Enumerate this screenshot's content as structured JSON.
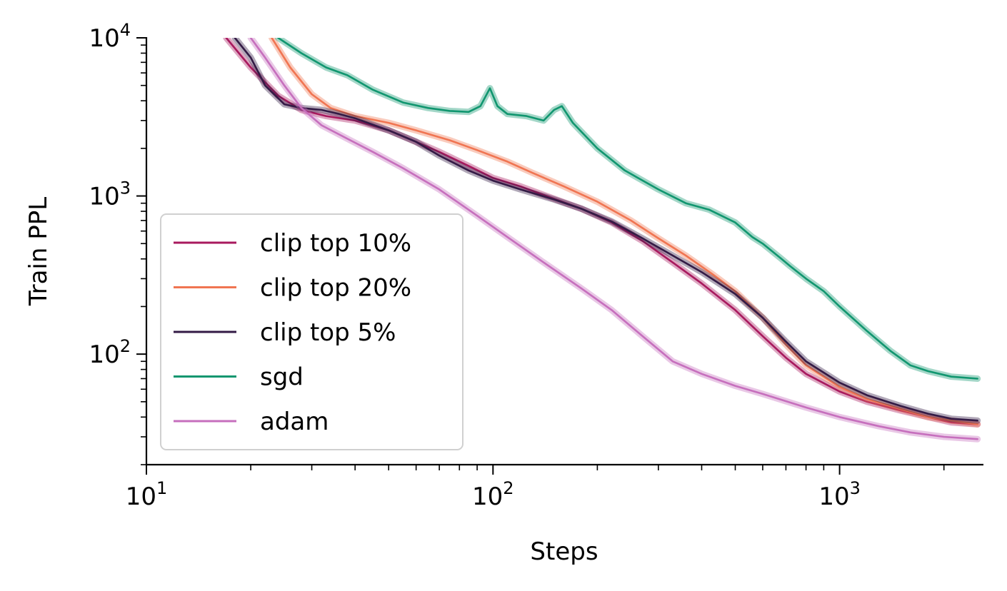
{
  "chart_data": {
    "type": "line",
    "title": "",
    "xlabel": "Steps",
    "ylabel": "Train PPL",
    "xscale": "log",
    "yscale": "log",
    "xlim": [
      10,
      2600
    ],
    "ylim": [
      20,
      10000
    ],
    "grid": false,
    "legend_position": "lower-left",
    "x_ticks": [
      {
        "value": 10,
        "base": "10",
        "exp": "1"
      },
      {
        "value": 100,
        "base": "10",
        "exp": "2"
      },
      {
        "value": 1000,
        "base": "10",
        "exp": "3"
      }
    ],
    "y_ticks": [
      {
        "value": 100,
        "base": "10",
        "exp": "2"
      },
      {
        "value": 1000,
        "base": "10",
        "exp": "3"
      },
      {
        "value": 10000,
        "base": "10",
        "exp": "4"
      }
    ],
    "series": [
      {
        "name": "clip top 10%",
        "color": "#a8195e",
        "x": [
          17,
          20,
          24,
          28,
          33,
          40,
          50,
          60,
          70,
          85,
          100,
          120,
          150,
          180,
          220,
          270,
          330,
          400,
          500,
          600,
          700,
          800,
          1000,
          1200,
          1500,
          1800,
          2100,
          2500
        ],
        "y": [
          10000,
          6500,
          4300,
          3500,
          3200,
          3000,
          2600,
          2200,
          1900,
          1550,
          1300,
          1150,
          960,
          830,
          680,
          520,
          380,
          280,
          190,
          130,
          95,
          75,
          58,
          50,
          44,
          40,
          37,
          36
        ]
      },
      {
        "name": "clip top 20%",
        "color": "#f07552",
        "x": [
          23,
          26,
          30,
          34,
          40,
          50,
          60,
          75,
          90,
          110,
          130,
          160,
          200,
          250,
          300,
          360,
          430,
          500,
          600,
          700,
          800,
          1000,
          1200,
          1500,
          1800,
          2100,
          2500
        ],
        "y": [
          10000,
          6500,
          4400,
          3600,
          3200,
          2900,
          2600,
          2250,
          1950,
          1650,
          1400,
          1150,
          920,
          700,
          540,
          420,
          320,
          250,
          170,
          115,
          85,
          62,
          52,
          45,
          40,
          38,
          36
        ]
      },
      {
        "name": "clip top 5%",
        "color": "#331a45",
        "x": [
          18,
          20,
          22,
          25,
          28,
          32,
          36,
          40,
          50,
          60,
          70,
          85,
          100,
          120,
          150,
          180,
          220,
          270,
          330,
          400,
          500,
          600,
          700,
          800,
          1000,
          1200,
          1500,
          1800,
          2100,
          2500
        ],
        "y": [
          10000,
          7500,
          5000,
          3800,
          3600,
          3500,
          3300,
          3100,
          2600,
          2200,
          1800,
          1450,
          1250,
          1100,
          950,
          830,
          690,
          540,
          420,
          330,
          240,
          170,
          120,
          90,
          66,
          55,
          47,
          42,
          39,
          38
        ]
      },
      {
        "name": "sgd",
        "color": "#10966f",
        "x": [
          24,
          28,
          33,
          38,
          45,
          55,
          65,
          75,
          85,
          92,
          98,
          103,
          110,
          125,
          140,
          150,
          158,
          170,
          200,
          240,
          300,
          360,
          420,
          500,
          560,
          600,
          680,
          720,
          800,
          900,
          1000,
          1200,
          1400,
          1600,
          1800,
          2100,
          2500
        ],
        "y": [
          10000,
          8000,
          6500,
          5800,
          4700,
          3900,
          3600,
          3450,
          3400,
          3700,
          4800,
          3700,
          3300,
          3200,
          3000,
          3500,
          3700,
          2900,
          2000,
          1450,
          1100,
          900,
          820,
          680,
          550,
          500,
          400,
          360,
          300,
          250,
          200,
          140,
          105,
          85,
          78,
          72,
          70
        ]
      },
      {
        "name": "adam",
        "color": "#c66fbd",
        "x": [
          20,
          22,
          25,
          28,
          32,
          38,
          45,
          55,
          70,
          90,
          110,
          140,
          180,
          220,
          270,
          330,
          400,
          500,
          600,
          800,
          1000,
          1300,
          1600,
          2000,
          2500
        ],
        "y": [
          10000,
          7500,
          5000,
          3600,
          2800,
          2300,
          1900,
          1500,
          1100,
          750,
          550,
          380,
          260,
          190,
          130,
          90,
          75,
          63,
          56,
          46,
          40,
          35,
          32,
          30,
          29
        ]
      }
    ]
  }
}
